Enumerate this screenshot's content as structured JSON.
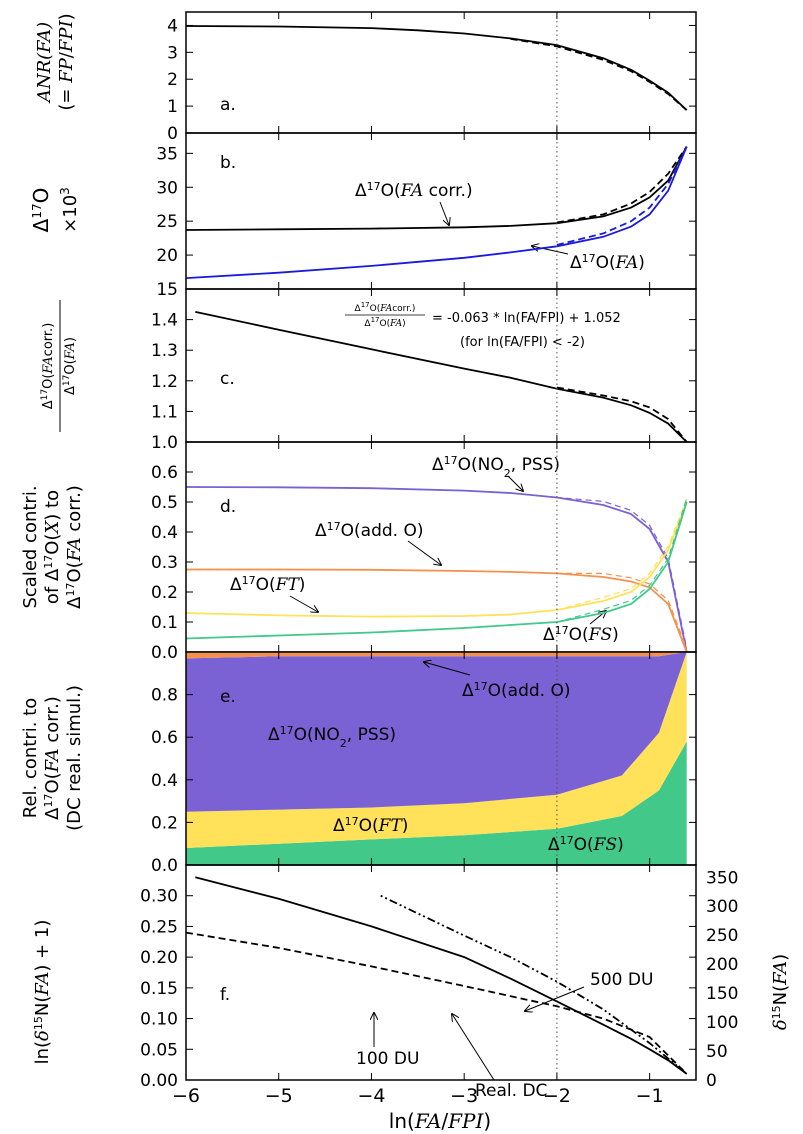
{
  "colors": {
    "black": "#000000",
    "blue": "#1a1adb",
    "purple": "#7b62d4",
    "orange": "#f5914e",
    "yellow": "#ffe15a",
    "green": "#42c98a"
  },
  "chart_data": [
    {
      "id": "a",
      "type": "line",
      "panel_label": "a.",
      "ylabel": "ANR(FA) (= FP/FPI)",
      "xlim": [
        -6,
        -0.5
      ],
      "ylim": [
        0,
        4.5
      ],
      "yticks": [
        0,
        1,
        2,
        3,
        4
      ],
      "reference_line_x": -2,
      "series": [
        {
          "style": "solid",
          "color": "#000000",
          "x": [
            -6,
            -5,
            -4,
            -3.5,
            -3,
            -2.5,
            -2,
            -1.5,
            -1.2,
            -1.0,
            -0.8,
            -0.6
          ],
          "y": [
            3.98,
            3.96,
            3.9,
            3.82,
            3.7,
            3.52,
            3.27,
            2.78,
            2.35,
            1.95,
            1.5,
            0.85
          ]
        },
        {
          "style": "dashed",
          "color": "#000000",
          "x": [
            -2.5,
            -2,
            -1.5,
            -1.2,
            -1.0,
            -0.8,
            -0.6
          ],
          "y": [
            3.5,
            3.22,
            2.72,
            2.3,
            1.9,
            1.45,
            0.85
          ]
        }
      ]
    },
    {
      "id": "b",
      "type": "line",
      "panel_label": "b.",
      "ylabel": "Δ17O ×10³",
      "xlim": [
        -6,
        -0.5
      ],
      "ylim": [
        15,
        38
      ],
      "yticks": [
        15,
        20,
        25,
        30,
        35
      ],
      "reference_line_x": -2,
      "series": [
        {
          "style": "solid",
          "color": "#000000",
          "x": [
            -6,
            -5,
            -4,
            -3,
            -2.5,
            -2,
            -1.5,
            -1.2,
            -1.0,
            -0.8,
            -0.6
          ],
          "y": [
            23.7,
            23.8,
            23.9,
            24.1,
            24.3,
            24.7,
            25.7,
            27.0,
            28.5,
            31.0,
            36.0
          ]
        },
        {
          "style": "dashed",
          "color": "#000000",
          "x": [
            -2,
            -1.5,
            -1.2,
            -1.0,
            -0.8,
            -0.6
          ],
          "y": [
            24.8,
            26.0,
            27.6,
            29.3,
            32.0,
            36.0
          ]
        },
        {
          "style": "solid",
          "color": "#1a1adb",
          "x": [
            -6,
            -5,
            -4,
            -3,
            -2.5,
            -2,
            -1.5,
            -1.2,
            -1.0,
            -0.8,
            -0.6
          ],
          "y": [
            16.6,
            17.4,
            18.4,
            19.6,
            20.4,
            21.3,
            22.7,
            24.2,
            26.0,
            29.5,
            36.0
          ]
        },
        {
          "style": "dashed",
          "color": "#1a1adb",
          "x": [
            -2,
            -1.5,
            -1.2,
            -1.0,
            -0.8,
            -0.6
          ],
          "y": [
            21.5,
            23.2,
            25.0,
            27.0,
            30.5,
            36.0
          ]
        }
      ],
      "annotations": [
        {
          "text": "Δ17O(FA corr.)"
        },
        {
          "text": "Δ17O(FA)"
        }
      ]
    },
    {
      "id": "c",
      "type": "line",
      "panel_label": "c.",
      "ylabel": "Δ17O(FAcorr.) / Δ17O(FA)",
      "xlim": [
        -6,
        -0.5
      ],
      "ylim": [
        1.0,
        1.5
      ],
      "yticks": [
        1.0,
        1.1,
        1.2,
        1.3,
        1.4
      ],
      "reference_line_x": -2,
      "equation": "= -0.063 * ln(FA/FPI) + 1.052",
      "equation_condition": "(for ln(FA/FPI) < -2)",
      "series": [
        {
          "style": "solid",
          "color": "#000000",
          "x": [
            -5.9,
            -5,
            -4,
            -3,
            -2.5,
            -2,
            -1.5,
            -1.2,
            -1.0,
            -0.8,
            -0.6
          ],
          "y": [
            1.425,
            1.367,
            1.303,
            1.24,
            1.21,
            1.174,
            1.145,
            1.12,
            1.095,
            1.06,
            1.0
          ]
        },
        {
          "style": "dashed",
          "color": "#000000",
          "x": [
            -2,
            -1.5,
            -1.2,
            -1.0,
            -0.8,
            -0.6
          ],
          "y": [
            1.178,
            1.152,
            1.133,
            1.113,
            1.075,
            1.0
          ]
        }
      ]
    },
    {
      "id": "d",
      "type": "line",
      "panel_label": "d.",
      "ylabel": "Scaled contri. of Δ17O(X) to Δ17O(FA corr.)",
      "xlim": [
        -6,
        -0.5
      ],
      "ylim": [
        0,
        0.7
      ],
      "yticks": [
        0.0,
        0.1,
        0.2,
        0.3,
        0.4,
        0.5,
        0.6
      ],
      "reference_line_x": -2,
      "series": [
        {
          "name": "Δ17O(NO2, PSS)",
          "color": "#7b62d4",
          "x": [
            -6,
            -5,
            -4,
            -3,
            -2.5,
            -2,
            -1.5,
            -1.2,
            -1.0,
            -0.8,
            -0.6
          ],
          "y": [
            0.55,
            0.549,
            0.546,
            0.538,
            0.53,
            0.515,
            0.49,
            0.46,
            0.41,
            0.3,
            0.0
          ]
        },
        {
          "name": "Δ17O(add. O)",
          "color": "#f5914e",
          "x": [
            -6,
            -5,
            -4,
            -3,
            -2.5,
            -2,
            -1.5,
            -1.2,
            -1.0,
            -0.8,
            -0.6
          ],
          "y": [
            0.275,
            0.275,
            0.274,
            0.27,
            0.267,
            0.262,
            0.25,
            0.235,
            0.215,
            0.16,
            0.0
          ]
        },
        {
          "name": "Δ17O(FT)",
          "color": "#ffe15a",
          "x": [
            -6,
            -5,
            -4,
            -3,
            -2.5,
            -2,
            -1.5,
            -1.2,
            -1.0,
            -0.8,
            -0.6
          ],
          "y": [
            0.13,
            0.122,
            0.118,
            0.12,
            0.125,
            0.14,
            0.17,
            0.2,
            0.25,
            0.34,
            0.5
          ]
        },
        {
          "name": "Δ17O(FS)",
          "color": "#42c98a",
          "x": [
            -6,
            -5,
            -4,
            -3,
            -2.5,
            -2,
            -1.5,
            -1.2,
            -1.0,
            -0.8,
            -0.6
          ],
          "y": [
            0.045,
            0.055,
            0.065,
            0.08,
            0.09,
            0.1,
            0.13,
            0.16,
            0.21,
            0.3,
            0.5
          ]
        }
      ],
      "annotations": [
        {
          "text": "Δ17O(NO2, PSS)"
        },
        {
          "text": "Δ17O(add. O)"
        },
        {
          "text": "Δ17O(FT)"
        },
        {
          "text": "Δ17O(FS)"
        }
      ]
    },
    {
      "id": "e",
      "type": "area",
      "panel_label": "e.",
      "ylabel": "Rel. contri. to Δ17O(FA corr.) (DC real. simul.)",
      "xlim": [
        -6,
        -0.5
      ],
      "ylim": [
        0,
        1.0
      ],
      "yticks": [
        0.0,
        0.2,
        0.4,
        0.6,
        0.8
      ],
      "reference_line_x": -2,
      "x": [
        -6,
        -5,
        -4,
        -3,
        -2,
        -1.3,
        -0.9,
        -0.6
      ],
      "series": [
        {
          "name": "Δ17O(FS)",
          "color": "#42c98a",
          "values": [
            0.08,
            0.1,
            0.12,
            0.14,
            0.17,
            0.23,
            0.35,
            0.58
          ]
        },
        {
          "name": "Δ17O(FT)",
          "color": "#ffe15a",
          "values": [
            0.17,
            0.16,
            0.15,
            0.15,
            0.16,
            0.19,
            0.27,
            0.42
          ]
        },
        {
          "name": "Δ17O(NO2, PSS)",
          "color": "#7b62d4",
          "values": [
            0.72,
            0.72,
            0.71,
            0.69,
            0.65,
            0.56,
            0.36,
            0.0
          ]
        },
        {
          "name": "Δ17O(add. O)",
          "color": "#f5914e",
          "values": [
            0.03,
            0.02,
            0.02,
            0.02,
            0.02,
            0.02,
            0.02,
            0.0
          ]
        }
      ],
      "annotations": [
        {
          "text": "Δ17O(add. O)"
        },
        {
          "text": "Δ17O(NO2, PSS)"
        },
        {
          "text": "Δ17O(FT)"
        },
        {
          "text": "Δ17O(FS)"
        }
      ]
    },
    {
      "id": "f",
      "type": "line",
      "panel_label": "f.",
      "ylabel": "ln(δ15N(FA) + 1)",
      "ylabel_right": "δ15N(FA)",
      "xlabel": "ln(FA/FPI)",
      "xlim": [
        -6,
        -0.5
      ],
      "ylim": [
        0,
        0.35
      ],
      "yticks": [
        0.0,
        0.05,
        0.1,
        0.15,
        0.2,
        0.25,
        0.3
      ],
      "yticks_right": [
        0,
        50,
        100,
        150,
        200,
        250,
        300,
        350
      ],
      "xticks": [
        -6,
        -5,
        -4,
        -3,
        -2,
        -1
      ],
      "reference_line_x": -2,
      "series": [
        {
          "name": "Real. DC",
          "style": "solid",
          "color": "#000000",
          "x": [
            -5.9,
            -5,
            -4,
            -3,
            -2.5,
            -2,
            -1.5,
            -1.2,
            -1.0,
            -0.8,
            -0.6
          ],
          "y": [
            0.33,
            0.295,
            0.25,
            0.2,
            0.165,
            0.128,
            0.09,
            0.067,
            0.05,
            0.032,
            0.01
          ]
        },
        {
          "name": "100 DU",
          "style": "dashed",
          "color": "#000000",
          "x": [
            -6,
            -5,
            -4,
            -3,
            -2,
            -1.5,
            -1,
            -0.6
          ],
          "y": [
            0.24,
            0.215,
            0.185,
            0.153,
            0.12,
            0.1,
            0.07,
            0.01
          ]
        },
        {
          "name": "500 DU",
          "style": "dashdot",
          "color": "#000000",
          "x": [
            -3.9,
            -3,
            -2.5,
            -2,
            -1.5,
            -1,
            -0.6
          ],
          "y": [
            0.3,
            0.235,
            0.2,
            0.16,
            0.115,
            0.06,
            0.01
          ]
        }
      ],
      "annotations": [
        {
          "text": "500 DU"
        },
        {
          "text": "100 DU"
        },
        {
          "text": "Real. DC"
        }
      ]
    }
  ]
}
